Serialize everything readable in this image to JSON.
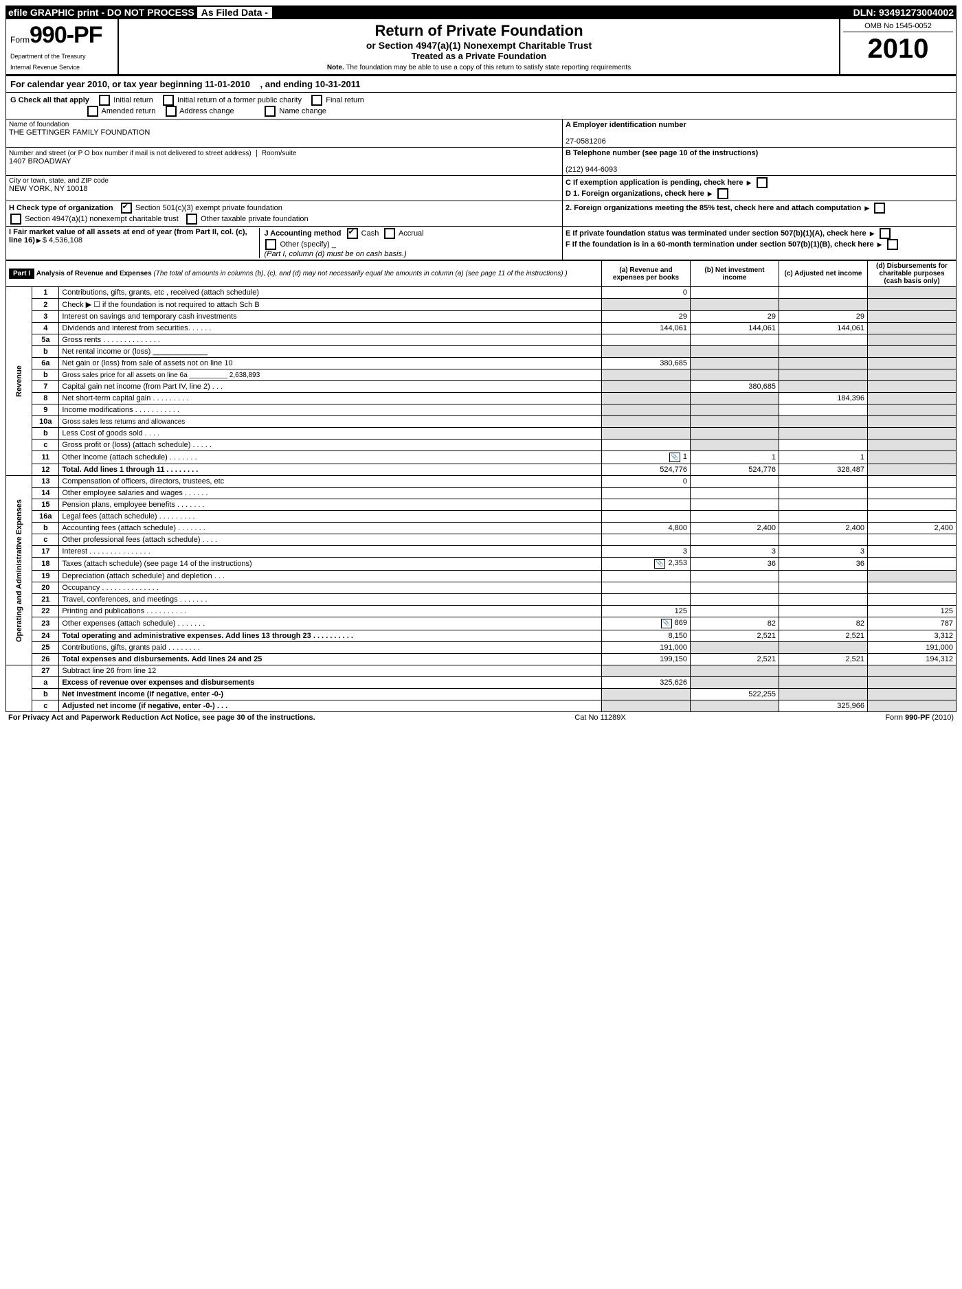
{
  "top_bar": {
    "left": "efile GRAPHIC print - DO NOT PROCESS",
    "mid": "As Filed Data -",
    "right": "DLN: 93491273004002"
  },
  "form": {
    "prefix": "Form",
    "number": "990-PF",
    "dept1": "Department of the Treasury",
    "dept2": "Internal Revenue Service"
  },
  "title": {
    "t1": "Return of Private Foundation",
    "t2": "or Section 4947(a)(1) Nonexempt Charitable Trust",
    "t3": "Treated as a Private Foundation",
    "note_prefix": "Note.",
    "note": "The foundation may be able to use a copy of this return to satisfy state reporting requirements"
  },
  "year_block": {
    "omb": "OMB No 1545-0052",
    "year": "2010"
  },
  "cal_year": {
    "prefix": "For calendar year 2010, or tax year beginning",
    "begin": "11-01-2010",
    "mid": ", and ending",
    "end": "10-31-2011"
  },
  "section_g": {
    "label": "G Check all that apply",
    "opts": [
      "Initial return",
      "Initial return of a former public charity",
      "Final return",
      "Amended return",
      "Address change",
      "Name change"
    ]
  },
  "name_of_foundation_label": "Name of foundation",
  "foundation_name": "THE GETTINGER FAMILY FOUNDATION",
  "address_label": "Number and street (or P O box number if mail is not delivered to street address)",
  "room_label": "Room/suite",
  "address": "1407 BROADWAY",
  "city_label": "City or town, state, and ZIP code",
  "city": "NEW YORK, NY 10018",
  "ein_label": "A Employer identification number",
  "ein": "27-0581206",
  "phone_label": "B Telephone number (see page 10 of the instructions)",
  "phone": "(212) 944-6093",
  "c_label": "C If exemption application is pending, check here",
  "d1_label": "D 1. Foreign organizations, check here",
  "d2_label": "2. Foreign organizations meeting the 85% test, check here and attach computation",
  "e_label": "E If private foundation status was terminated under section 507(b)(1)(A), check here",
  "f_label": "F If the foundation is in a 60-month termination under section 507(b)(1)(B), check here",
  "h": {
    "label": "H Check type of organization",
    "opt1": "Section 501(c)(3) exempt private foundation",
    "opt2": "Section 4947(a)(1) nonexempt charitable trust",
    "opt3": "Other taxable private foundation"
  },
  "i_label": "I Fair market value of all assets at end of year (from Part II, col. (c), line 16)",
  "i_value": "$  4,536,108",
  "j": {
    "label": "J Accounting method",
    "opts": [
      "Cash",
      "Accrual",
      "Other (specify)"
    ],
    "note": "(Part I, column (d) must be on cash basis.)"
  },
  "part1": {
    "header": "Part I",
    "title": "Analysis of Revenue and Expenses",
    "subtitle": "(The total of amounts in columns (b), (c), and (d) may not necessarily equal the amounts in column (a) (see page 11 of the instructions) )",
    "cols": {
      "a": "(a) Revenue and expenses per books",
      "b": "(b) Net investment income",
      "c": "(c) Adjusted net income",
      "d": "(d) Disbursements for charitable purposes (cash basis only)"
    }
  },
  "revenue_label": "Revenue",
  "opex_label": "Operating and Administrative Expenses",
  "rows": [
    {
      "n": "1",
      "desc": "Contributions, gifts, grants, etc , received (attach schedule)",
      "a": "0",
      "b": "",
      "c": "",
      "d": "",
      "d_grey": true
    },
    {
      "n": "2",
      "desc": "Check ▶ ☐ if the foundation is not required to attach Sch B",
      "a": "",
      "b": "",
      "c": "",
      "d": "",
      "d_grey": true,
      "b_grey": true,
      "c_grey": true,
      "a_grey": true
    },
    {
      "n": "3",
      "desc": "Interest on savings and temporary cash investments",
      "a": "29",
      "b": "29",
      "c": "29",
      "d": "",
      "d_grey": true
    },
    {
      "n": "4",
      "desc": "Dividends and interest from securities. . . . . .",
      "a": "144,061",
      "b": "144,061",
      "c": "144,061",
      "d": "",
      "d_grey": true
    },
    {
      "n": "5a",
      "desc": "Gross rents . . . . . . . . . . . . . .",
      "a": "",
      "b": "",
      "c": "",
      "d": "",
      "d_grey": true
    },
    {
      "n": "b",
      "desc": "Net rental income or (loss) _____________",
      "a": "",
      "b": "",
      "c": "",
      "d": "",
      "d_grey": true,
      "a_grey": true,
      "b_grey": true,
      "c_grey": true
    },
    {
      "n": "6a",
      "desc": "Net gain or (loss) from sale of assets not on line 10",
      "a": "380,685",
      "b": "",
      "c": "",
      "d": "",
      "d_grey": true,
      "b_grey": true,
      "c_grey": true
    },
    {
      "n": "b",
      "desc": "Gross sales price for all assets on line 6a __________ 2,638,893",
      "a": "",
      "b": "",
      "c": "",
      "d": "",
      "d_grey": true,
      "a_grey": true,
      "b_grey": true,
      "c_grey": true,
      "small": true
    },
    {
      "n": "7",
      "desc": "Capital gain net income (from Part IV, line 2) . . .",
      "a": "",
      "b": "380,685",
      "c": "",
      "d": "",
      "d_grey": true,
      "a_grey": true,
      "c_grey": true
    },
    {
      "n": "8",
      "desc": "Net short-term capital gain . . . . . . . . .",
      "a": "",
      "b": "",
      "c": "184,396",
      "d": "",
      "d_grey": true,
      "a_grey": true,
      "b_grey": true
    },
    {
      "n": "9",
      "desc": "Income modifications . . . . . . . . . . .",
      "a": "",
      "b": "",
      "c": "",
      "d": "",
      "d_grey": true,
      "a_grey": true,
      "b_grey": true
    },
    {
      "n": "10a",
      "desc": "Gross sales less returns and allowances",
      "a": "",
      "b": "",
      "c": "",
      "d": "",
      "d_grey": true,
      "a_grey": true,
      "b_grey": true,
      "c_grey": true,
      "small": true
    },
    {
      "n": "b",
      "desc": "Less Cost of goods sold . . . .",
      "a": "",
      "b": "",
      "c": "",
      "d": "",
      "d_grey": true,
      "a_grey": true,
      "b_grey": true,
      "c_grey": true
    },
    {
      "n": "c",
      "desc": "Gross profit or (loss) (attach schedule) . . . . .",
      "a": "",
      "b": "",
      "c": "",
      "d": "",
      "d_grey": true,
      "b_grey": true
    },
    {
      "n": "11",
      "desc": "Other income (attach schedule) . . . . . . .",
      "a": "1",
      "b": "1",
      "c": "1",
      "d": "",
      "d_grey": true,
      "attach": true
    },
    {
      "n": "12",
      "desc": "Total. Add lines 1 through 11 . . . . . . . .",
      "a": "524,776",
      "b": "524,776",
      "c": "328,487",
      "d": "",
      "d_grey": true,
      "bold": true
    }
  ],
  "opex_rows": [
    {
      "n": "13",
      "desc": "Compensation of officers, directors, trustees, etc",
      "a": "0",
      "b": "",
      "c": "",
      "d": ""
    },
    {
      "n": "14",
      "desc": "Other employee salaries and wages . . . . . .",
      "a": "",
      "b": "",
      "c": "",
      "d": ""
    },
    {
      "n": "15",
      "desc": "Pension plans, employee benefits . . . . . . .",
      "a": "",
      "b": "",
      "c": "",
      "d": ""
    },
    {
      "n": "16a",
      "desc": "Legal fees (attach schedule) . . . . . . . . .",
      "a": "",
      "b": "",
      "c": "",
      "d": ""
    },
    {
      "n": "b",
      "desc": "Accounting fees (attach schedule) . . . . . . .",
      "a": "4,800",
      "b": "2,400",
      "c": "2,400",
      "d": "2,400"
    },
    {
      "n": "c",
      "desc": "Other professional fees (attach schedule) . . . .",
      "a": "",
      "b": "",
      "c": "",
      "d": ""
    },
    {
      "n": "17",
      "desc": "Interest . . . . . . . . . . . . . . .",
      "a": "3",
      "b": "3",
      "c": "3",
      "d": ""
    },
    {
      "n": "18",
      "desc": "Taxes (attach schedule) (see page 14 of the instructions)",
      "a": "2,353",
      "b": "36",
      "c": "36",
      "d": "",
      "attach": true
    },
    {
      "n": "19",
      "desc": "Depreciation (attach schedule) and depletion . . .",
      "a": "",
      "b": "",
      "c": "",
      "d": "",
      "d_grey": true
    },
    {
      "n": "20",
      "desc": "Occupancy . . . . . . . . . . . . . .",
      "a": "",
      "b": "",
      "c": "",
      "d": ""
    },
    {
      "n": "21",
      "desc": "Travel, conferences, and meetings . . . . . . .",
      "a": "",
      "b": "",
      "c": "",
      "d": ""
    },
    {
      "n": "22",
      "desc": "Printing and publications . . . . . . . . . .",
      "a": "125",
      "b": "",
      "c": "",
      "d": "125"
    },
    {
      "n": "23",
      "desc": "Other expenses (attach schedule) . . . . . . .",
      "a": "869",
      "b": "82",
      "c": "82",
      "d": "787",
      "attach": true
    },
    {
      "n": "24",
      "desc": "Total operating and administrative expenses. Add lines 13 through 23 . . . . . . . . . .",
      "a": "8,150",
      "b": "2,521",
      "c": "2,521",
      "d": "3,312",
      "bold": true
    },
    {
      "n": "25",
      "desc": "Contributions, gifts, grants paid . . . . . . . .",
      "a": "191,000",
      "b": "",
      "c": "",
      "d": "191,000",
      "b_grey": true,
      "c_grey": true
    },
    {
      "n": "26",
      "desc": "Total expenses and disbursements. Add lines 24 and 25",
      "a": "199,150",
      "b": "2,521",
      "c": "2,521",
      "d": "194,312",
      "bold": true
    }
  ],
  "bottom_rows": [
    {
      "n": "27",
      "desc": "Subtract line 26 from line 12",
      "a": "",
      "b": "",
      "c": "",
      "d": "",
      "a_grey": true,
      "b_grey": true,
      "c_grey": true,
      "d_grey": true
    },
    {
      "n": "a",
      "desc": "Excess of revenue over expenses and disbursements",
      "a": "325,626",
      "b": "",
      "c": "",
      "d": "",
      "bold": true,
      "b_grey": true,
      "c_grey": true,
      "d_grey": true
    },
    {
      "n": "b",
      "desc": "Net investment income (if negative, enter -0-)",
      "a": "",
      "b": "522,255",
      "c": "",
      "d": "",
      "bold": true,
      "a_grey": true,
      "c_grey": true,
      "d_grey": true
    },
    {
      "n": "c",
      "desc": "Adjusted net income (if negative, enter -0-) . . .",
      "a": "",
      "b": "",
      "c": "325,966",
      "d": "",
      "bold": true,
      "a_grey": true,
      "b_grey": true,
      "d_grey": true
    }
  ],
  "footer": {
    "left": "For Privacy Act and Paperwork Reduction Act Notice, see page 30 of the instructions.",
    "mid": "Cat No 11289X",
    "right": "Form 990-PF (2010)"
  }
}
